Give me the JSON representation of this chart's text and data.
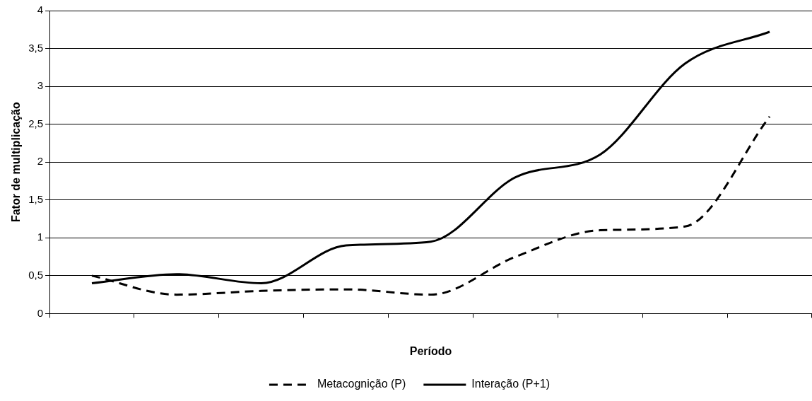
{
  "chart_data": {
    "type": "line",
    "xlabel": "Período",
    "ylabel": "Fator de multiplicação",
    "categories": [
      null,
      null,
      null,
      null,
      null,
      null,
      null,
      null,
      null
    ],
    "series": [
      {
        "name": "Metacognição (P)",
        "color": "#000000",
        "line_style": "dashed",
        "values": [
          0.5,
          0.25,
          0.3,
          0.32,
          0.25,
          0.75,
          1.1,
          1.15,
          2.6
        ]
      },
      {
        "name": "Interação (P+1)",
        "color": "#000000",
        "line_style": "solid",
        "values": [
          0.4,
          0.52,
          0.4,
          0.9,
          0.95,
          1.8,
          2.1,
          3.3,
          3.72
        ]
      }
    ],
    "ylim": [
      0,
      4
    ],
    "yticks": [
      0,
      {
        "value": 0.5,
        "label": "0,5"
      },
      1,
      {
        "value": 1.5,
        "label": "1,5"
      },
      2,
      {
        "value": 2.5,
        "label": "2,5"
      },
      3,
      {
        "value": 3.5,
        "label": "3,5"
      },
      4
    ],
    "grid": "y",
    "legend": "bottom",
    "marker": "none"
  }
}
